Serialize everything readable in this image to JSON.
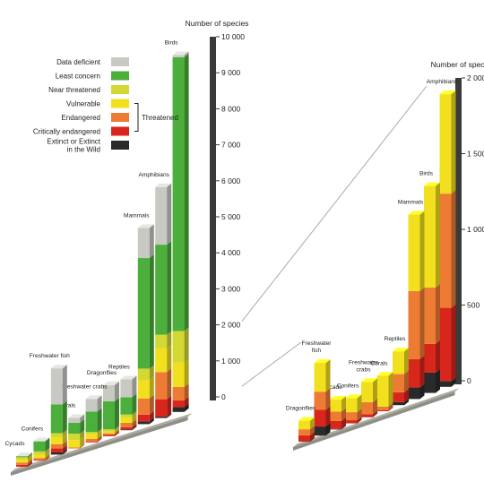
{
  "chart_data": [
    {
      "type": "bar",
      "stacked": true,
      "ylabel": "Number of species",
      "ylim": [
        0,
        10000
      ],
      "yticks": [
        0,
        1000,
        2000,
        3000,
        4000,
        5000,
        6000,
        7000,
        8000,
        9000,
        10000
      ],
      "ytick_labels": [
        "0",
        "1 000",
        "2 000",
        "3 000",
        "4 000",
        "5 000",
        "6 000",
        "7 000",
        "8 000",
        "9 000",
        "10 000"
      ],
      "categories": [
        "Cycads",
        "Conifers",
        "Freshwater fish",
        "Corals",
        "Freshwater crabs",
        "Dragonflies",
        "Reptiles",
        "Mammals",
        "Amphibians",
        "Birds"
      ],
      "series": [
        {
          "name": "Extinct or Extinct in the Wild",
          "values": [
            4,
            1,
            60,
            0,
            1,
            2,
            20,
            76,
            38,
            134
          ]
        },
        {
          "name": "Critically endangered",
          "values": [
            52,
            20,
            110,
            6,
            19,
            40,
            65,
            188,
            484,
            190
          ]
        },
        {
          "name": "Endangered",
          "values": [
            62,
            53,
            120,
            25,
            80,
            40,
            120,
            449,
            754,
            372
          ]
        },
        {
          "name": "Vulnerable",
          "values": [
            79,
            93,
            190,
            204,
            134,
            56,
            150,
            505,
            657,
            671
          ]
        },
        {
          "name": "Near threatened",
          "values": [
            67,
            90,
            115,
            176,
            53,
            55,
            80,
            323,
            381,
            880
          ]
        },
        {
          "name": "Least concern",
          "values": [
            30,
            280,
            800,
            300,
            570,
            780,
            480,
            3070,
            2500,
            7600
          ]
        },
        {
          "name": "Data deficient",
          "values": [
            1,
            7,
            1000,
            140,
            350,
            450,
            500,
            836,
            1600,
            60
          ]
        }
      ]
    },
    {
      "type": "bar",
      "stacked": true,
      "ylabel": "Number of species",
      "ylim": [
        0,
        2000
      ],
      "yticks": [
        0,
        500,
        1000,
        1500,
        2000
      ],
      "ytick_labels": [
        "0",
        "500",
        "1 000",
        "1 500",
        "2 000"
      ],
      "categories": [
        "Dragonflies",
        "Freshwater fish",
        "Cycads",
        "Conifers",
        "Freshwater crabs",
        "Corals",
        "Reptiles",
        "Mammals",
        "Birds",
        "Amphibians"
      ],
      "series": [
        {
          "name": "Extinct or Extinct in the Wild",
          "values": [
            2,
            60,
            4,
            1,
            1,
            0,
            20,
            76,
            134,
            38
          ]
        },
        {
          "name": "Critically endangered",
          "values": [
            40,
            110,
            52,
            20,
            19,
            6,
            65,
            188,
            190,
            484
          ]
        },
        {
          "name": "Endangered",
          "values": [
            40,
            120,
            62,
            53,
            80,
            25,
            120,
            449,
            372,
            754
          ]
        },
        {
          "name": "Vulnerable",
          "values": [
            56,
            190,
            79,
            93,
            134,
            204,
            150,
            505,
            671,
            657
          ]
        }
      ]
    }
  ],
  "legend": {
    "items": [
      {
        "label": "Data deficient",
        "color": "#c9c9c4"
      },
      {
        "label": "Least concern",
        "color": "#4caf3c"
      },
      {
        "label": "Near threatened",
        "color": "#d4d832"
      },
      {
        "label": "Vulnerable",
        "color": "#f2e01e"
      },
      {
        "label": "Endangered",
        "color": "#ee7b34"
      },
      {
        "label": "Critically endangered",
        "color": "#d8261c"
      },
      {
        "label": "Extinct or Extinct in the Wild",
        "color": "#2a2a2a",
        "lines": [
          "Extinct or Extinct",
          "in the Wild"
        ]
      }
    ],
    "group_label": "Threatened"
  },
  "colors": {
    "Extinct or Extinct in the Wild": "#2a2a2a",
    "Critically endangered": "#d8261c",
    "Endangered": "#ee7b34",
    "Vulnerable": "#f2e01e",
    "Near threatened": "#d4d832",
    "Least concern": "#4caf3c",
    "Data deficient": "#c9c9c4",
    "base": "#8f8f86",
    "axis_gray": "#666666"
  },
  "right_labels": {
    "Freshwater fish": [
      "Freshwater",
      "fish"
    ],
    "Freshwater crabs": [
      "Freshwater",
      "crabs"
    ]
  }
}
